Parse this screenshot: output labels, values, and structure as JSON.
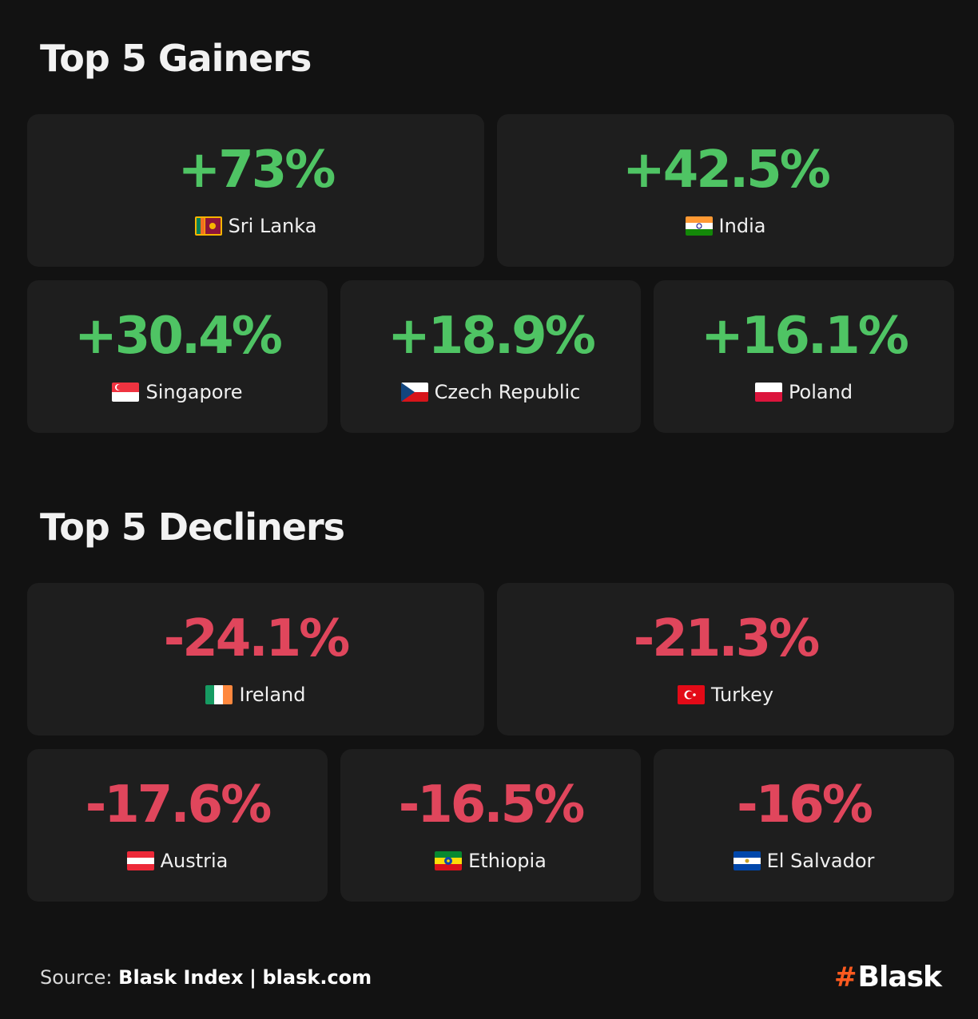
{
  "gainers_title": "Top 5 Gainers",
  "decliners_title": "Top 5 Decliners",
  "gainers": [
    {
      "value": "+73%",
      "country": "Sri Lanka",
      "flag": "sri-lanka-flag-icon"
    },
    {
      "value": "+42.5%",
      "country": "India",
      "flag": "india-flag-icon"
    },
    {
      "value": "+30.4%",
      "country": "Singapore",
      "flag": "singapore-flag-icon"
    },
    {
      "value": "+18.9%",
      "country": "Czech Republic",
      "flag": "czech-flag-icon"
    },
    {
      "value": "+16.1%",
      "country": "Poland",
      "flag": "poland-flag-icon"
    }
  ],
  "decliners": [
    {
      "value": "-24.1%",
      "country": "Ireland",
      "flag": "ireland-flag-icon"
    },
    {
      "value": "-21.3%",
      "country": "Turkey",
      "flag": "turkey-flag-icon"
    },
    {
      "value": "-17.6%",
      "country": "Austria",
      "flag": "austria-flag-icon"
    },
    {
      "value": "-16.5%",
      "country": "Ethiopia",
      "flag": "ethiopia-flag-icon"
    },
    {
      "value": "-16%",
      "country": "El Salvador",
      "flag": "el-salvador-flag-icon"
    }
  ],
  "footer": {
    "source_label": "Source:",
    "source_name": "Blask Index",
    "separator": "|",
    "site": "blask.com"
  },
  "logo": {
    "hash": "#",
    "name": "Blask"
  },
  "colors": {
    "positive": "#4fc464",
    "negative": "#e0465c",
    "background": "#121212",
    "card": "#1e1e1e",
    "brand": "#ff5a1f"
  }
}
